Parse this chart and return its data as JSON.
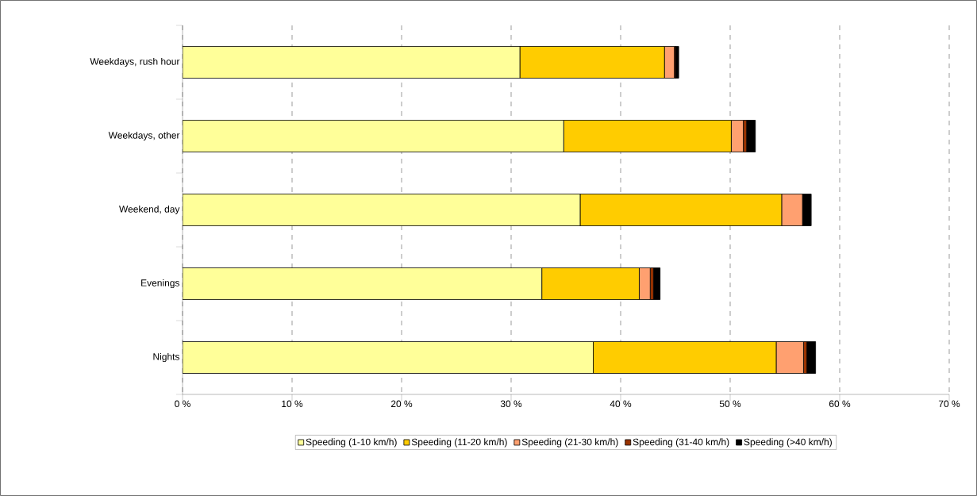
{
  "chart_data": {
    "type": "bar",
    "orientation": "horizontal",
    "stacked": true,
    "categories": [
      "Weekdays, rush hour",
      "Weekdays, other",
      "Weekend, day",
      "Evenings",
      "Nights"
    ],
    "series": [
      {
        "name": "Speeding (1-10 km/h)",
        "color": "#ffff99",
        "values": [
          30.8,
          34.8,
          36.3,
          32.8,
          37.5
        ]
      },
      {
        "name": "Speeding (11-20 km/h)",
        "color": "#ffcc00",
        "values": [
          13.2,
          15.3,
          18.4,
          8.9,
          16.7
        ]
      },
      {
        "name": "Speeding (21-30 km/h)",
        "color": "#ffa070",
        "values": [
          0.9,
          1.1,
          1.9,
          1.0,
          2.5
        ]
      },
      {
        "name": "Speeding (31-40 km/h)",
        "color": "#993300",
        "values": [
          0.1,
          0.3,
          null,
          0.3,
          0.3
        ]
      },
      {
        "name": "Speeding (>40 km/h)",
        "color": "#000000",
        "values": [
          0.3,
          0.8,
          0.8,
          0.6,
          0.8
        ]
      }
    ],
    "xlim": [
      0,
      70
    ],
    "xticks": [
      {
        "value": 0,
        "label": "0 %"
      },
      {
        "value": 10,
        "label": "10 %"
      },
      {
        "value": 20,
        "label": "20 %"
      },
      {
        "value": 30,
        "label": "30 %"
      },
      {
        "value": 40,
        "label": "40 %"
      },
      {
        "value": 50,
        "label": "50 %"
      },
      {
        "value": 60,
        "label": "60 %"
      },
      {
        "value": 70,
        "label": "70 %"
      }
    ],
    "grid": "x",
    "legend": "bottom"
  }
}
